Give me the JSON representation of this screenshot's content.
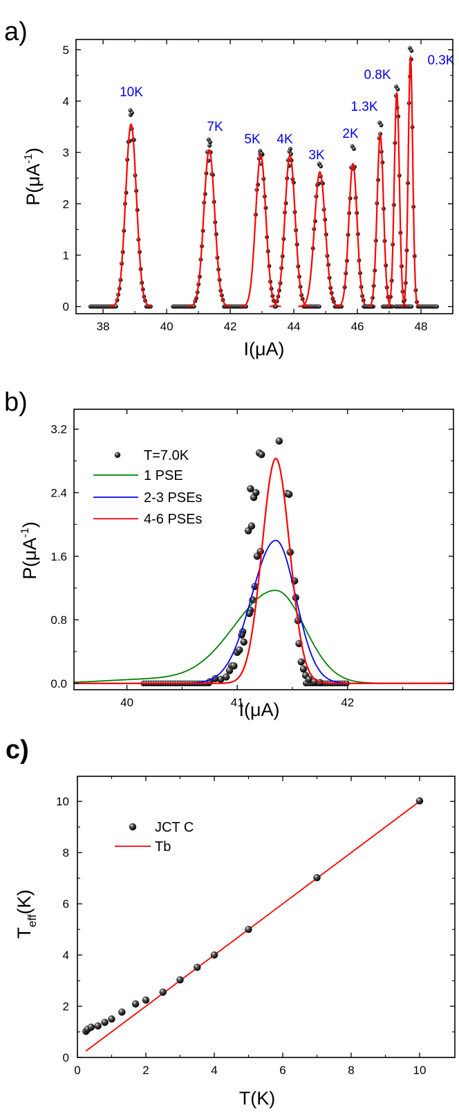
{
  "colors": {
    "data_points": "#111111",
    "fit_red": "#ff0000",
    "one_pse": "#008000",
    "two_three_pse": "#0000ff",
    "four_six_pse": "#ff0000",
    "peak_labels": "#0000ee"
  },
  "chart_data": [
    {
      "panel": "a)",
      "type": "line",
      "title": "",
      "xlabel": "I(μA)",
      "ylabel": "P(μA⁻¹)",
      "xlim": [
        37.15,
        49.0
      ],
      "ylim": [
        -0.14,
        5.2
      ],
      "xticks": [
        38,
        40,
        42,
        44,
        46,
        48
      ],
      "yticks": [
        0,
        1,
        2,
        3,
        4,
        5
      ],
      "grid": false,
      "legend": "none",
      "annotations": [
        "10K",
        "7K",
        "5K",
        "4K",
        "3K",
        "2K",
        "1.3K",
        "0.8K",
        "0.3K"
      ],
      "series": [
        {
          "name": "10K",
          "center": 38.88,
          "fit_peak": 3.55,
          "data_max": 3.82,
          "width_sigma": 0.17,
          "data_range": [
            37.6,
            39.5
          ]
        },
        {
          "name": "7K",
          "center": 41.34,
          "fit_peak": 3.05,
          "data_max": 3.25,
          "width_sigma": 0.17,
          "data_range": [
            40.2,
            42.5
          ]
        },
        {
          "name": "5K",
          "center": 42.96,
          "fit_peak": 2.95,
          "data_max": 3.03,
          "width_sigma": 0.16,
          "data_range": [
            42.8,
            43.4
          ]
        },
        {
          "name": "4K",
          "center": 43.88,
          "fit_peak": 2.95,
          "data_max": 3.02,
          "width_sigma": 0.16,
          "data_range": [
            43.4,
            44.8
          ]
        },
        {
          "name": "3K",
          "center": 44.82,
          "fit_peak": 2.62,
          "data_max": 2.78,
          "width_sigma": 0.17,
          "data_range": [
            44.6,
            45.5
          ]
        },
        {
          "name": "2K",
          "center": 45.86,
          "fit_peak": 2.78,
          "data_max": 3.12,
          "width_sigma": 0.13,
          "data_range": [
            45.6,
            46.5
          ]
        },
        {
          "name": "1.3K",
          "center": 46.72,
          "fit_peak": 3.35,
          "data_max": 3.58,
          "width_sigma": 0.1,
          "data_range": [
            46.2,
            47.1
          ]
        },
        {
          "name": "0.8K",
          "center": 47.24,
          "fit_peak": 4.15,
          "data_max": 4.28,
          "width_sigma": 0.08,
          "data_range": [
            46.8,
            47.7
          ]
        },
        {
          "name": "0.3K",
          "center": 47.67,
          "fit_peak": 4.85,
          "data_max": 5.03,
          "width_sigma": 0.07,
          "data_range": [
            47.2,
            48.5
          ]
        }
      ]
    },
    {
      "panel": "b)",
      "type": "line",
      "title": "",
      "xlabel": "I(μA)",
      "ylabel": "P(μA⁻¹)",
      "xlim": [
        39.52,
        42.96
      ],
      "ylim": [
        -0.08,
        3.45
      ],
      "xticks": [
        40,
        41,
        42
      ],
      "yticks": [
        0.0,
        0.8,
        1.6,
        2.4,
        3.2
      ],
      "grid": false,
      "legend_position": "upper left",
      "legend": [
        "T=7.0K",
        "1 PSE",
        "2-3 PSEs",
        "4-6 PSEs"
      ],
      "series": [
        {
          "name": "T=7.0K",
          "kind": "scatter",
          "x_range": [
            40.15,
            42.0
          ],
          "points": [
            [
              41.2,
              2.9
            ],
            [
              41.22,
              2.88
            ],
            [
              41.38,
              3.05
            ],
            [
              41.12,
              2.45
            ],
            [
              41.15,
              2.34
            ],
            [
              41.17,
              2.4
            ],
            [
              41.45,
              2.39
            ],
            [
              41.47,
              2.38
            ],
            [
              41.48,
              1.65
            ],
            [
              41.52,
              1.29
            ],
            [
              41.53,
              1.08
            ],
            [
              41.55,
              0.79
            ],
            [
              41.56,
              0.5
            ],
            [
              41.58,
              0.27
            ],
            [
              41.6,
              0.18
            ],
            [
              41.1,
              1.92
            ],
            [
              41.13,
              1.98
            ],
            [
              41.18,
              1.6
            ],
            [
              41.21,
              1.66
            ],
            [
              41.16,
              1.22
            ],
            [
              41.14,
              1.05
            ],
            [
              41.12,
              0.92
            ],
            [
              41.11,
              0.88
            ],
            [
              41.05,
              0.65
            ],
            [
              41.04,
              0.61
            ],
            [
              41.06,
              0.52
            ],
            [
              41.0,
              0.39
            ],
            [
              41.02,
              0.42
            ],
            [
              40.95,
              0.22
            ],
            [
              40.97,
              0.22
            ],
            [
              40.93,
              0.16
            ],
            [
              40.9,
              0.08
            ],
            [
              40.85,
              0.05
            ],
            [
              40.8,
              0.06
            ],
            [
              40.75,
              0.02
            ],
            [
              41.62,
              0.1
            ],
            [
              41.65,
              0.05
            ],
            [
              41.7,
              0.02
            ],
            [
              41.75,
              0.01
            ]
          ]
        },
        {
          "name": "1 PSE",
          "kind": "line",
          "center": 41.35,
          "peak": 1.17,
          "color": "#008000"
        },
        {
          "name": "2-3 PSEs",
          "kind": "line",
          "center": 41.35,
          "peak": 1.8,
          "color": "#0000ff"
        },
        {
          "name": "4-6 PSEs",
          "kind": "line",
          "center": 41.35,
          "peak": 2.83,
          "color": "#ff0000"
        }
      ]
    },
    {
      "panel": "c)",
      "type": "scatter",
      "title": "",
      "xlabel": "T(K)",
      "ylabel": "T_eff(K)",
      "xlim": [
        0,
        11.03
      ],
      "ylim": [
        0,
        10.98
      ],
      "xticks": [
        0,
        2,
        4,
        6,
        8,
        10
      ],
      "yticks": [
        0,
        2,
        4,
        6,
        8,
        10
      ],
      "grid": false,
      "legend_position": "upper left",
      "legend": [
        "JCT C",
        "Tb"
      ],
      "series": [
        {
          "name": "JCT C",
          "kind": "scatter",
          "x": [
            0.25,
            0.3,
            0.4,
            0.6,
            0.8,
            1.0,
            1.3,
            1.7,
            2.0,
            2.5,
            3.0,
            3.5,
            4.0,
            5.0,
            7.0,
            10.0
          ],
          "y": [
            1.02,
            1.1,
            1.18,
            1.23,
            1.37,
            1.5,
            1.77,
            2.09,
            2.24,
            2.55,
            3.03,
            3.52,
            4.0,
            5.0,
            7.02,
            10.02
          ]
        },
        {
          "name": "Tb",
          "kind": "line",
          "x": [
            0.25,
            10.0
          ],
          "y": [
            0.25,
            10.0
          ],
          "color": "#ff0000"
        }
      ]
    }
  ]
}
